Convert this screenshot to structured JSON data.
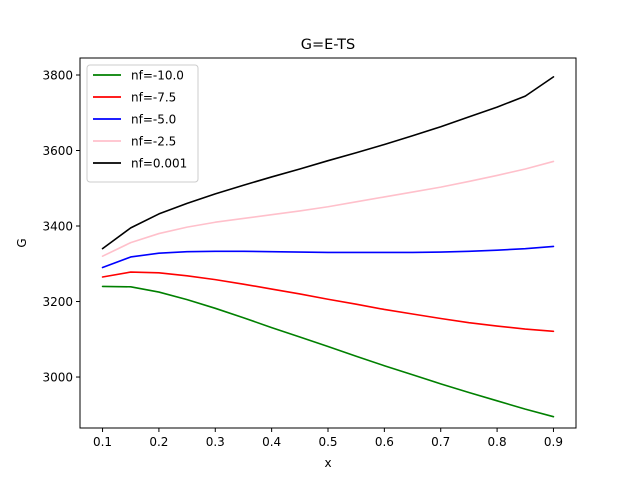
{
  "chart_data": {
    "type": "line",
    "title": "G=E-TS",
    "xlabel": "x",
    "ylabel": "G",
    "xlim": [
      0.06,
      0.94
    ],
    "ylim": [
      2865,
      3845
    ],
    "xticks": [
      0.1,
      0.2,
      0.3,
      0.4,
      0.5,
      0.6,
      0.7,
      0.8,
      0.9
    ],
    "xtick_labels": [
      "0.1",
      "0.2",
      "0.3",
      "0.4",
      "0.5",
      "0.6",
      "0.7",
      "0.8",
      "0.9"
    ],
    "yticks": [
      3000,
      3200,
      3400,
      3600,
      3800
    ],
    "ytick_labels": [
      "3000",
      "3200",
      "3400",
      "3600",
      "3800"
    ],
    "grid": false,
    "legend_position": "upper-left",
    "x": [
      0.1,
      0.15,
      0.2,
      0.25,
      0.3,
      0.35,
      0.4,
      0.45,
      0.5,
      0.55,
      0.6,
      0.65,
      0.7,
      0.75,
      0.8,
      0.85,
      0.9
    ],
    "series": [
      {
        "name": "nf=-10.0",
        "color": "#008000",
        "values": [
          3240,
          3239,
          3225,
          3205,
          3182,
          3157,
          3131,
          3106,
          3081,
          3055,
          3030,
          3006,
          2982,
          2959,
          2937,
          2915,
          2895
        ]
      },
      {
        "name": "nf=-7.5",
        "color": "#ff0000",
        "values": [
          3265,
          3278,
          3276,
          3268,
          3258,
          3246,
          3233,
          3220,
          3206,
          3193,
          3179,
          3167,
          3155,
          3144,
          3135,
          3127,
          3121
        ]
      },
      {
        "name": "nf=-5.0",
        "color": "#0000ff",
        "values": [
          3290,
          3318,
          3328,
          3332,
          3333,
          3333,
          3332,
          3331,
          3330,
          3330,
          3330,
          3330,
          3331,
          3333,
          3336,
          3340,
          3346
        ]
      },
      {
        "name": "nf=-2.5",
        "color": "#ffc0cb",
        "values": [
          3320,
          3356,
          3380,
          3397,
          3410,
          3420,
          3430,
          3440,
          3451,
          3464,
          3477,
          3490,
          3503,
          3518,
          3534,
          3551,
          3571
        ]
      },
      {
        "name": "nf=0.001",
        "color": "#000000",
        "values": [
          3340,
          3395,
          3432,
          3460,
          3485,
          3508,
          3530,
          3551,
          3573,
          3594,
          3616,
          3639,
          3663,
          3689,
          3715,
          3744,
          3795
        ]
      }
    ]
  }
}
